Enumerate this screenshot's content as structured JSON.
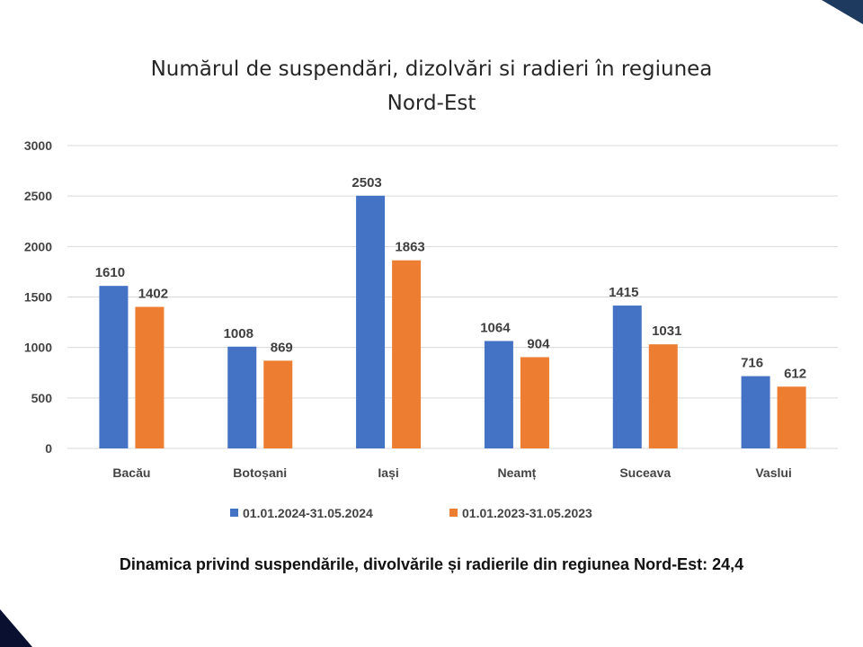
{
  "chart_data": {
    "type": "bar",
    "title_line1": "Numărul de suspendări, dizolvări si radieri în regiunea",
    "title_line2": "Nord-Est",
    "categories": [
      "Bacău",
      "Botoșani",
      "Iași",
      "Neamț",
      "Suceava",
      "Vaslui"
    ],
    "series": [
      {
        "name": "01.01.2024-31.05.2024",
        "color": "#4472c4",
        "values": [
          1610,
          1008,
          2503,
          1064,
          1415,
          716
        ]
      },
      {
        "name": "01.01.2023-31.05.2023",
        "color": "#ed7d31",
        "values": [
          1402,
          869,
          1863,
          904,
          1031,
          612
        ]
      }
    ],
    "ylim": [
      0,
      3000
    ],
    "yticks": [
      0,
      500,
      1000,
      1500,
      2000,
      2500,
      3000
    ],
    "grid": true,
    "legend": "bottom"
  },
  "caption": "Dinamica privind suspendările, divolvările și radierile din regiunea Nord-Est: 24,4"
}
